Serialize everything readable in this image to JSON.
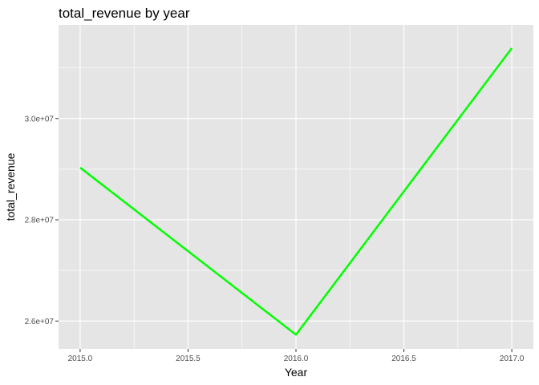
{
  "chart_data": {
    "type": "line",
    "title": "total_revenue by year",
    "xlabel": "Year",
    "ylabel": "total_revenue",
    "x": [
      2015.0,
      2016.0,
      2017.0
    ],
    "series": [
      {
        "values": [
          29030000,
          25730000,
          31390000
        ],
        "color": "#00FF00"
      }
    ],
    "xlim": [
      2014.9,
      2017.1
    ],
    "ylim": [
      25450000,
      31850000
    ],
    "x_ticks": [
      2015.0,
      2015.5,
      2016.0,
      2016.5,
      2017.0
    ],
    "x_tick_labels": [
      "2015.0",
      "2015.5",
      "2016.0",
      "2016.5",
      "2017.0"
    ],
    "y_ticks": [
      26000000,
      28000000,
      30000000
    ],
    "y_tick_labels": [
      "2.6e+07",
      "2.8e+07",
      "3.0e+07"
    ],
    "grid": true,
    "panel_background": "#E5E5E5",
    "grid_color": "#FFFFFF"
  }
}
